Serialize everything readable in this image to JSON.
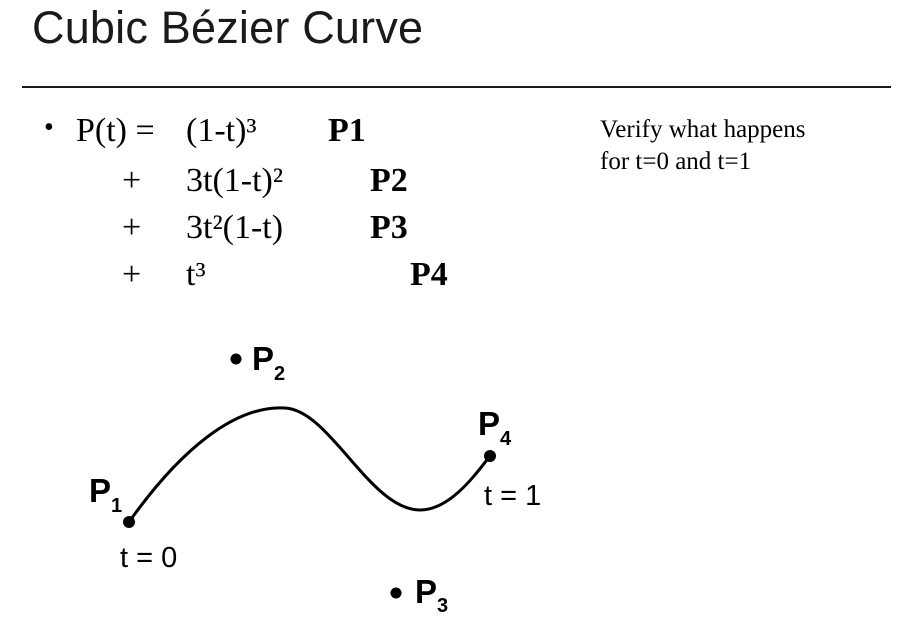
{
  "title": "Cubic Bézier Curve",
  "formula": {
    "bullet": "•",
    "lhs": "P(t) =",
    "terms": [
      {
        "sign": "",
        "coef": "(1-t)³",
        "point": "P1"
      },
      {
        "sign": "+",
        "coef": "3t(1-t)²",
        "point": "P2"
      },
      {
        "sign": "+",
        "coef": "3t²(1-t)",
        "point": "P3"
      },
      {
        "sign": "+",
        "coef": "t³",
        "point": "P4"
      }
    ]
  },
  "note": "Verify what happens\nfor t=0 and t=1",
  "diagram": {
    "points": [
      {
        "letter": "P",
        "sub": "1"
      },
      {
        "letter": "P",
        "sub": "2"
      },
      {
        "letter": "P",
        "sub": "3"
      },
      {
        "letter": "P",
        "sub": "4"
      }
    ],
    "start_label": "t = 0",
    "end_label": "t = 1"
  }
}
